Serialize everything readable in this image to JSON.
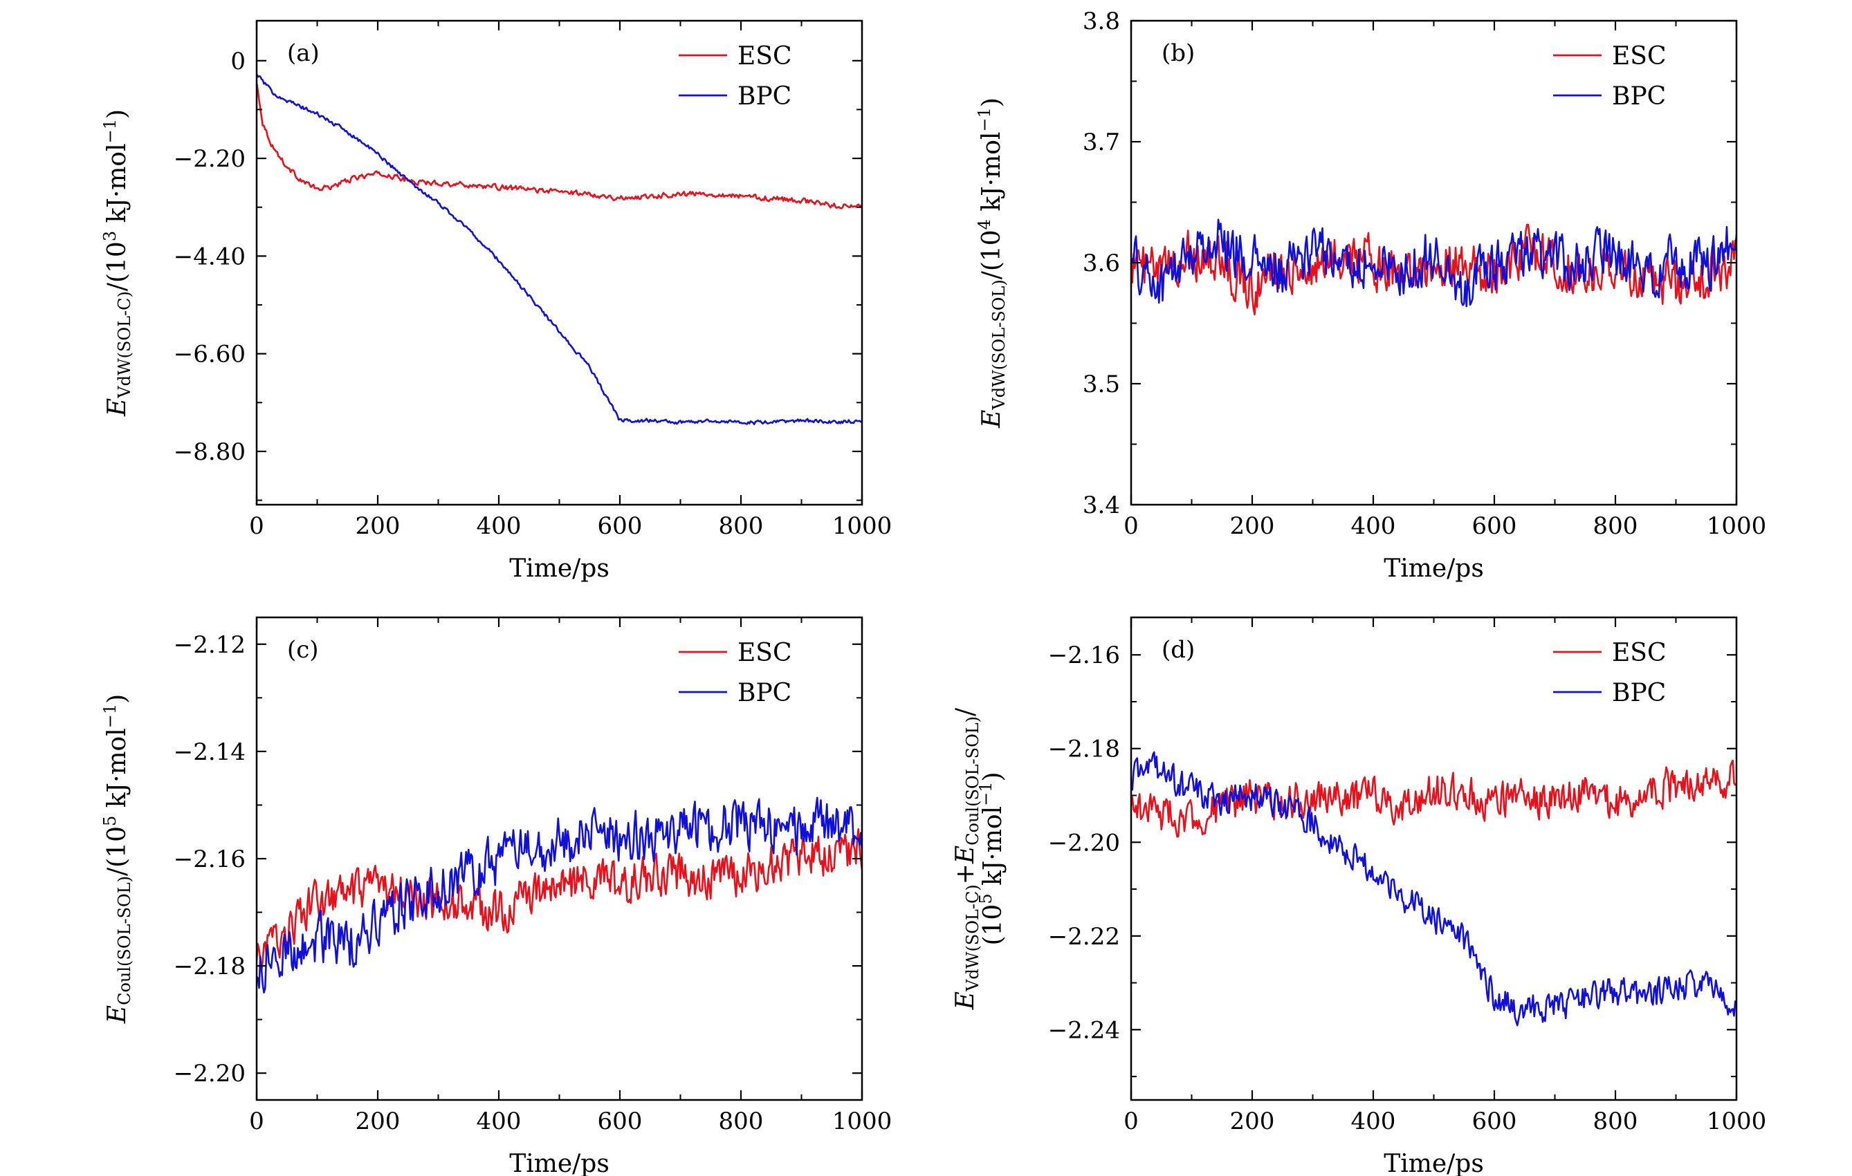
{
  "chart_data": [
    {
      "id": "a",
      "type": "line",
      "panel_label": "(a)",
      "xlabel": "Time/ps",
      "ylabel": "E_VdW(SOL-C)/(10^3 kJ·mol^-1)",
      "ylabel_main": "E",
      "ylabel_sub": "VdW(SOL-C)",
      "ylabel_rest": "/(10",
      "ylabel_exp": "3",
      "ylabel_unit": " kJ·mol",
      "ylabel_unit_exp": "−1",
      "ylabel_close": ")",
      "xlim": [
        0,
        1000
      ],
      "ylim": [
        -10.0,
        0.9
      ],
      "xticks": [
        "0",
        "200",
        "400",
        "600",
        "800",
        "1000"
      ],
      "yticks": [
        {
          "value": 0,
          "label": "0"
        },
        {
          "value": -2.2,
          "label": "−2.20"
        },
        {
          "value": -4.4,
          "label": "−4.40"
        },
        {
          "value": -6.6,
          "label": "−6.60"
        },
        {
          "value": -8.8,
          "label": "−8.80"
        }
      ],
      "legend": "top-right",
      "series": [
        {
          "name": "ESC",
          "color": "#e8101a",
          "x": [
            0,
            10,
            25,
            50,
            75,
            100,
            120,
            150,
            175,
            200,
            225,
            250,
            275,
            300,
            350,
            400,
            450,
            500,
            550,
            600,
            650,
            700,
            750,
            800,
            850,
            900,
            950,
            1000
          ],
          "y": [
            -0.5,
            -1.4,
            -1.9,
            -2.4,
            -2.7,
            -2.9,
            -2.85,
            -2.7,
            -2.6,
            -2.55,
            -2.6,
            -2.7,
            -2.75,
            -2.75,
            -2.8,
            -2.85,
            -2.9,
            -2.95,
            -3.0,
            -3.1,
            -3.05,
            -3.0,
            -3.0,
            -3.05,
            -3.1,
            -3.15,
            -3.25,
            -3.3
          ]
        },
        {
          "name": "BPC",
          "color": "#1010d8",
          "x": [
            0,
            25,
            50,
            100,
            150,
            200,
            250,
            300,
            350,
            400,
            450,
            500,
            550,
            600,
            650,
            700,
            750,
            800,
            850,
            900,
            950,
            1000
          ],
          "y": [
            -0.3,
            -0.7,
            -0.9,
            -1.2,
            -1.6,
            -2.1,
            -2.7,
            -3.2,
            -3.8,
            -4.5,
            -5.3,
            -6.1,
            -6.9,
            -8.1,
            -8.1,
            -8.15,
            -8.1,
            -8.15,
            -8.15,
            -8.1,
            -8.15,
            -8.1
          ]
        }
      ]
    },
    {
      "id": "b",
      "type": "line",
      "panel_label": "(b)",
      "xlabel": "Time/ps",
      "ylabel": "E_VdW(SOL-SOL)/(10^4 kJ·mol^-1)",
      "ylabel_main": "E",
      "ylabel_sub": "VdW(SOL-SOL)",
      "ylabel_rest": "/(10",
      "ylabel_exp": "4",
      "ylabel_unit": " kJ·mol",
      "ylabel_unit_exp": "−1",
      "ylabel_close": ")",
      "xlim": [
        0,
        1000
      ],
      "ylim": [
        3.4,
        3.8
      ],
      "xticks": [
        "0",
        "200",
        "400",
        "600",
        "800",
        "1000"
      ],
      "yticks": [
        {
          "value": 3.4,
          "label": "3.4"
        },
        {
          "value": 3.5,
          "label": "3.5"
        },
        {
          "value": 3.6,
          "label": "3.6"
        },
        {
          "value": 3.7,
          "label": "3.7"
        },
        {
          "value": 3.8,
          "label": "3.8"
        }
      ],
      "legend": "top-right",
      "series": [
        {
          "name": "ESC",
          "color": "#e8101a",
          "x": [
            0,
            50,
            100,
            150,
            200,
            250,
            300,
            350,
            400,
            450,
            500,
            550,
            600,
            650,
            700,
            750,
            800,
            850,
            900,
            950,
            1000
          ],
          "y": [
            3.6,
            3.59,
            3.61,
            3.6,
            3.58,
            3.6,
            3.59,
            3.61,
            3.6,
            3.59,
            3.6,
            3.6,
            3.59,
            3.61,
            3.6,
            3.59,
            3.6,
            3.59,
            3.58,
            3.59,
            3.6
          ]
        },
        {
          "name": "BPC",
          "color": "#1010d8",
          "x": [
            0,
            50,
            100,
            150,
            200,
            250,
            300,
            350,
            400,
            450,
            500,
            550,
            600,
            650,
            700,
            750,
            800,
            850,
            900,
            950,
            1000
          ],
          "y": [
            3.6,
            3.58,
            3.61,
            3.62,
            3.6,
            3.59,
            3.61,
            3.6,
            3.6,
            3.59,
            3.61,
            3.58,
            3.6,
            3.61,
            3.6,
            3.6,
            3.61,
            3.59,
            3.6,
            3.6,
            3.62
          ]
        }
      ]
    },
    {
      "id": "c",
      "type": "line",
      "panel_label": "(c)",
      "xlabel": "Time/ps",
      "ylabel": "E_Coul(SOL-SOL)/(10^5 kJ·mol^-1)",
      "ylabel_main": "E",
      "ylabel_sub": "Coul(SOL-SOL)",
      "ylabel_rest": "/(10",
      "ylabel_exp": "5",
      "ylabel_unit": " kJ·mol",
      "ylabel_unit_exp": "−1",
      "ylabel_close": ")",
      "xlim": [
        0,
        1000
      ],
      "ylim": [
        -2.205,
        -2.115
      ],
      "xticks": [
        "0",
        "200",
        "400",
        "600",
        "800",
        "1000"
      ],
      "yticks": [
        {
          "value": -2.12,
          "label": "−2.12"
        },
        {
          "value": -2.14,
          "label": "−2.14"
        },
        {
          "value": -2.16,
          "label": "−2.16"
        },
        {
          "value": -2.18,
          "label": "−2.18"
        },
        {
          "value": -2.2,
          "label": "−2.20"
        }
      ],
      "legend": "top-right",
      "series": [
        {
          "name": "ESC",
          "color": "#e8101a",
          "x": [
            0,
            50,
            100,
            150,
            200,
            250,
            300,
            350,
            400,
            450,
            500,
            550,
            600,
            650,
            700,
            750,
            800,
            850,
            900,
            950,
            1000
          ],
          "y": [
            -2.179,
            -2.173,
            -2.168,
            -2.167,
            -2.166,
            -2.167,
            -2.168,
            -2.169,
            -2.17,
            -2.167,
            -2.165,
            -2.164,
            -2.165,
            -2.163,
            -2.163,
            -2.164,
            -2.163,
            -2.161,
            -2.16,
            -2.159,
            -2.158
          ]
        },
        {
          "name": "BPC",
          "color": "#1010d8",
          "x": [
            0,
            50,
            100,
            150,
            200,
            250,
            300,
            350,
            400,
            450,
            500,
            550,
            600,
            650,
            700,
            750,
            800,
            850,
            900,
            950,
            1000
          ],
          "y": [
            -2.182,
            -2.177,
            -2.175,
            -2.176,
            -2.172,
            -2.168,
            -2.166,
            -2.163,
            -2.16,
            -2.158,
            -2.157,
            -2.155,
            -2.156,
            -2.156,
            -2.155,
            -2.154,
            -2.153,
            -2.154,
            -2.155,
            -2.153,
            -2.155
          ]
        }
      ]
    },
    {
      "id": "d",
      "type": "line",
      "panel_label": "(d)",
      "xlabel": "Time/ps",
      "ylabel": "E_VdW(SOL-C)+E_Coul(SOL-SOL)/(10^5 kJ·mol^-1)",
      "ylabel_line1_main": "E",
      "ylabel_line1_sub": "VdW(SOL-C)",
      "ylabel_line1_plus": "+",
      "ylabel_line1_main2": "E",
      "ylabel_line1_sub2": "Coul(SOL-SOL)",
      "ylabel_line1_slash": "/",
      "ylabel_line2_open": "(10",
      "ylabel_exp": "5",
      "ylabel_unit": " kJ·mol",
      "ylabel_unit_exp": "−1",
      "ylabel_close": ")",
      "xlim": [
        0,
        1000
      ],
      "ylim": [
        -2.255,
        -2.152
      ],
      "xticks": [
        "0",
        "200",
        "400",
        "600",
        "800",
        "1000"
      ],
      "yticks": [
        {
          "value": -2.16,
          "label": "−2.16"
        },
        {
          "value": -2.18,
          "label": "−2.18"
        },
        {
          "value": -2.2,
          "label": "−2.20"
        },
        {
          "value": -2.22,
          "label": "−2.22"
        },
        {
          "value": -2.24,
          "label": "−2.24"
        }
      ],
      "legend": "top-right",
      "series": [
        {
          "name": "ESC",
          "color": "#e8101a",
          "x": [
            0,
            50,
            100,
            150,
            200,
            250,
            300,
            350,
            400,
            450,
            500,
            550,
            600,
            650,
            700,
            750,
            800,
            850,
            900,
            950,
            1000
          ],
          "y": [
            -2.192,
            -2.194,
            -2.195,
            -2.193,
            -2.19,
            -2.192,
            -2.19,
            -2.191,
            -2.19,
            -2.192,
            -2.189,
            -2.19,
            -2.191,
            -2.19,
            -2.191,
            -2.189,
            -2.192,
            -2.189,
            -2.188,
            -2.186,
            -2.187
          ]
        },
        {
          "name": "BPC",
          "color": "#1010d8",
          "x": [
            0,
            25,
            50,
            100,
            150,
            200,
            250,
            300,
            350,
            400,
            450,
            500,
            550,
            575,
            600,
            650,
            700,
            750,
            800,
            850,
            900,
            950,
            1000
          ],
          "y": [
            -2.188,
            -2.182,
            -2.186,
            -2.189,
            -2.191,
            -2.19,
            -2.192,
            -2.196,
            -2.201,
            -2.206,
            -2.212,
            -2.216,
            -2.221,
            -2.226,
            -2.233,
            -2.236,
            -2.235,
            -2.233,
            -2.232,
            -2.233,
            -2.231,
            -2.23,
            -2.235
          ]
        }
      ]
    }
  ]
}
